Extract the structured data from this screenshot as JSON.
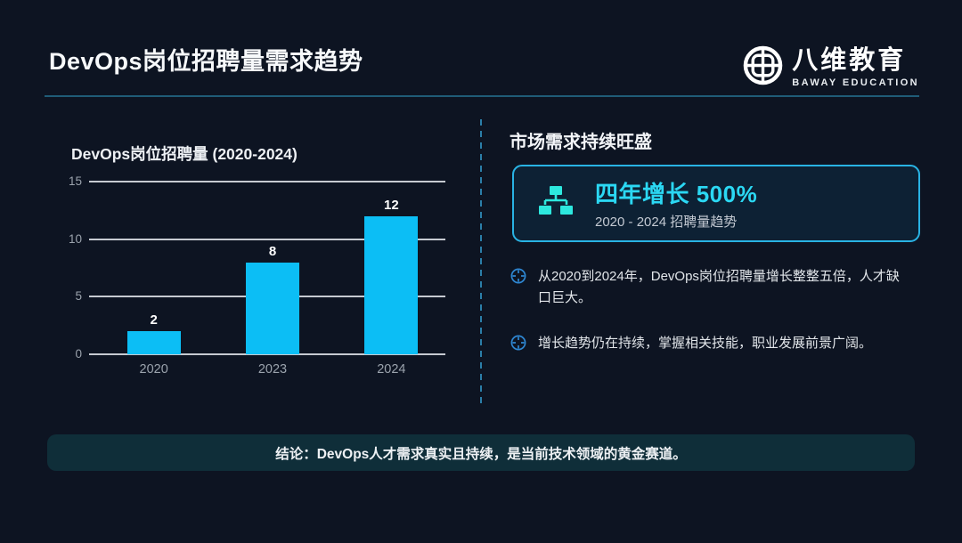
{
  "theme": {
    "background": "#0d1422",
    "bar_color": "#0cbef5",
    "headline_cyan": "#2bd8f3",
    "card_border": "#29b3e4",
    "card_background": "#0d2134",
    "banner_background": "#0f2e39",
    "divider_color": "#2b7fa9",
    "grid_line_color": "#c6cad1",
    "axis_label_color": "#9ba3ad",
    "bullet_icon_color": "#2e86d1",
    "sitemap_icon_color": "#2de8de",
    "header_rule_color": "#1f5c77"
  },
  "header": {
    "title": "DevOps岗位招聘量需求趋势",
    "logo": {
      "name": "八维教育",
      "subtitle": "BAWAY EDUCATION",
      "icon": "globe-grid-icon"
    }
  },
  "chart_data": {
    "type": "bar",
    "title": "DevOps岗位招聘量 (2020-2024)",
    "categories": [
      "2020",
      "2023",
      "2024"
    ],
    "values": [
      2,
      8,
      12
    ],
    "ylim": [
      0,
      15
    ],
    "yticks": [
      0,
      5,
      10,
      15
    ],
    "xlabel": "",
    "ylabel": "",
    "grid": true,
    "legend": false,
    "bar_color": "#0cbef5",
    "value_labels_shown": true
  },
  "right_panel": {
    "heading": "市场需求持续旺盛",
    "card": {
      "icon": "sitemap-icon",
      "headline": "四年增长 500%",
      "subtitle": "2020 - 2024 招聘量趋势"
    },
    "bullets": [
      {
        "icon": "crosshair-icon",
        "text": "从2020到2024年，DevOps岗位招聘量增长整整五倍，人才缺口巨大。"
      },
      {
        "icon": "crosshair-icon",
        "text": "增长趋势仍在持续，掌握相关技能，职业发展前景广阔。"
      }
    ]
  },
  "footer": {
    "conclusion": "结论：DevOps人才需求真实且持续，是当前技术领域的黄金赛道。"
  }
}
